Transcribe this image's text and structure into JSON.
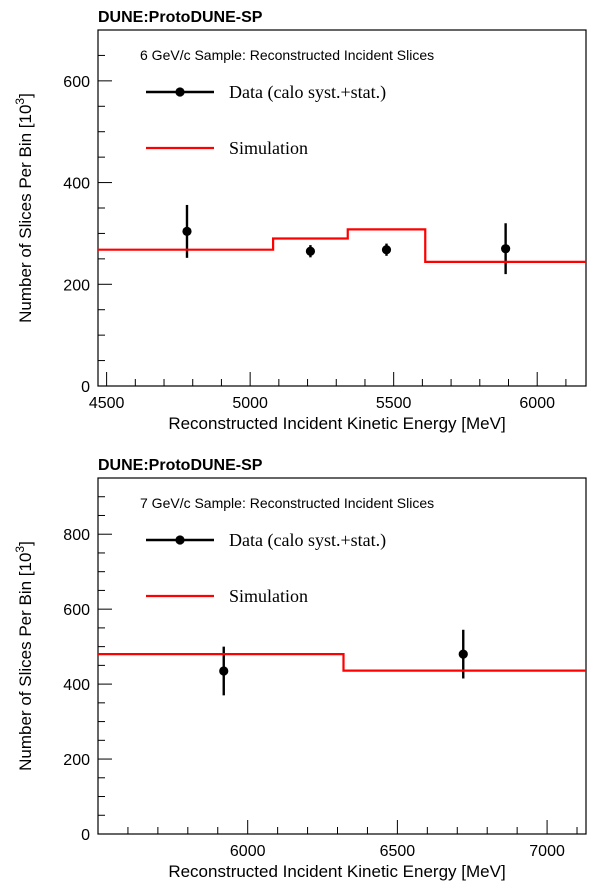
{
  "chart_data": [
    {
      "type": "line",
      "header": "DUNE:ProtoDUNE-SP",
      "title": "6 GeV/c Sample: Reconstructed Incident Slices",
      "xlabel": "Reconstructed Incident Kinetic Energy [MeV]",
      "ylabel_main": "Number of Slices Per Bin [10",
      "ylabel_exp": "3",
      "ylabel_end": "]",
      "xlim": [
        4470,
        6170
      ],
      "ylim": [
        0,
        700
      ],
      "x_major_ticks": [
        4500,
        5000,
        5500,
        6000
      ],
      "x_tick_labels": [
        "4500",
        "5000",
        "5500",
        "6000"
      ],
      "y_major_ticks": [
        0,
        200,
        400,
        600
      ],
      "y_tick_labels": [
        "0",
        "200",
        "400",
        "600"
      ],
      "x_minor_step": 100,
      "y_minor_step": 50,
      "legend_position": "top-left",
      "series": [
        {
          "name": "Data (calo syst.+stat.)",
          "kind": "points",
          "color": "#000000",
          "x": [
            4780,
            5210,
            5475,
            5890
          ],
          "y": [
            304,
            265,
            268,
            270
          ],
          "err_low": [
            52,
            12,
            12,
            50
          ],
          "err_high": [
            52,
            12,
            12,
            50
          ]
        },
        {
          "name": "Simulation",
          "kind": "step",
          "color": "#ff0000",
          "edges": [
            4470,
            5080,
            5340,
            5610,
            6170
          ],
          "values": [
            268,
            290,
            308,
            244
          ]
        }
      ]
    },
    {
      "type": "line",
      "header": "DUNE:ProtoDUNE-SP",
      "title": "7 GeV/c Sample: Reconstructed Incident Slices",
      "xlabel": "Reconstructed Incident Kinetic Energy [MeV]",
      "ylabel_main": "Number of Slices Per Bin [10",
      "ylabel_exp": "3",
      "ylabel_end": "]",
      "xlim": [
        5500,
        7130
      ],
      "ylim": [
        0,
        950
      ],
      "x_major_ticks": [
        6000,
        6500,
        7000
      ],
      "x_tick_labels": [
        "6000",
        "6500",
        "7000"
      ],
      "y_major_ticks": [
        0,
        200,
        400,
        600,
        800
      ],
      "y_tick_labels": [
        "0",
        "200",
        "400",
        "600",
        "800"
      ],
      "x_minor_step": 100,
      "y_minor_step": 50,
      "legend_position": "top-left",
      "series": [
        {
          "name": "Data (calo syst.+stat.)",
          "kind": "points",
          "color": "#000000",
          "x": [
            5920,
            6720
          ],
          "y": [
            435,
            480
          ],
          "err_low": [
            65,
            65
          ],
          "err_high": [
            65,
            65
          ]
        },
        {
          "name": "Simulation",
          "kind": "step",
          "color": "#ff0000",
          "edges": [
            5500,
            6320,
            7130
          ],
          "values": [
            480,
            436
          ]
        }
      ]
    }
  ]
}
